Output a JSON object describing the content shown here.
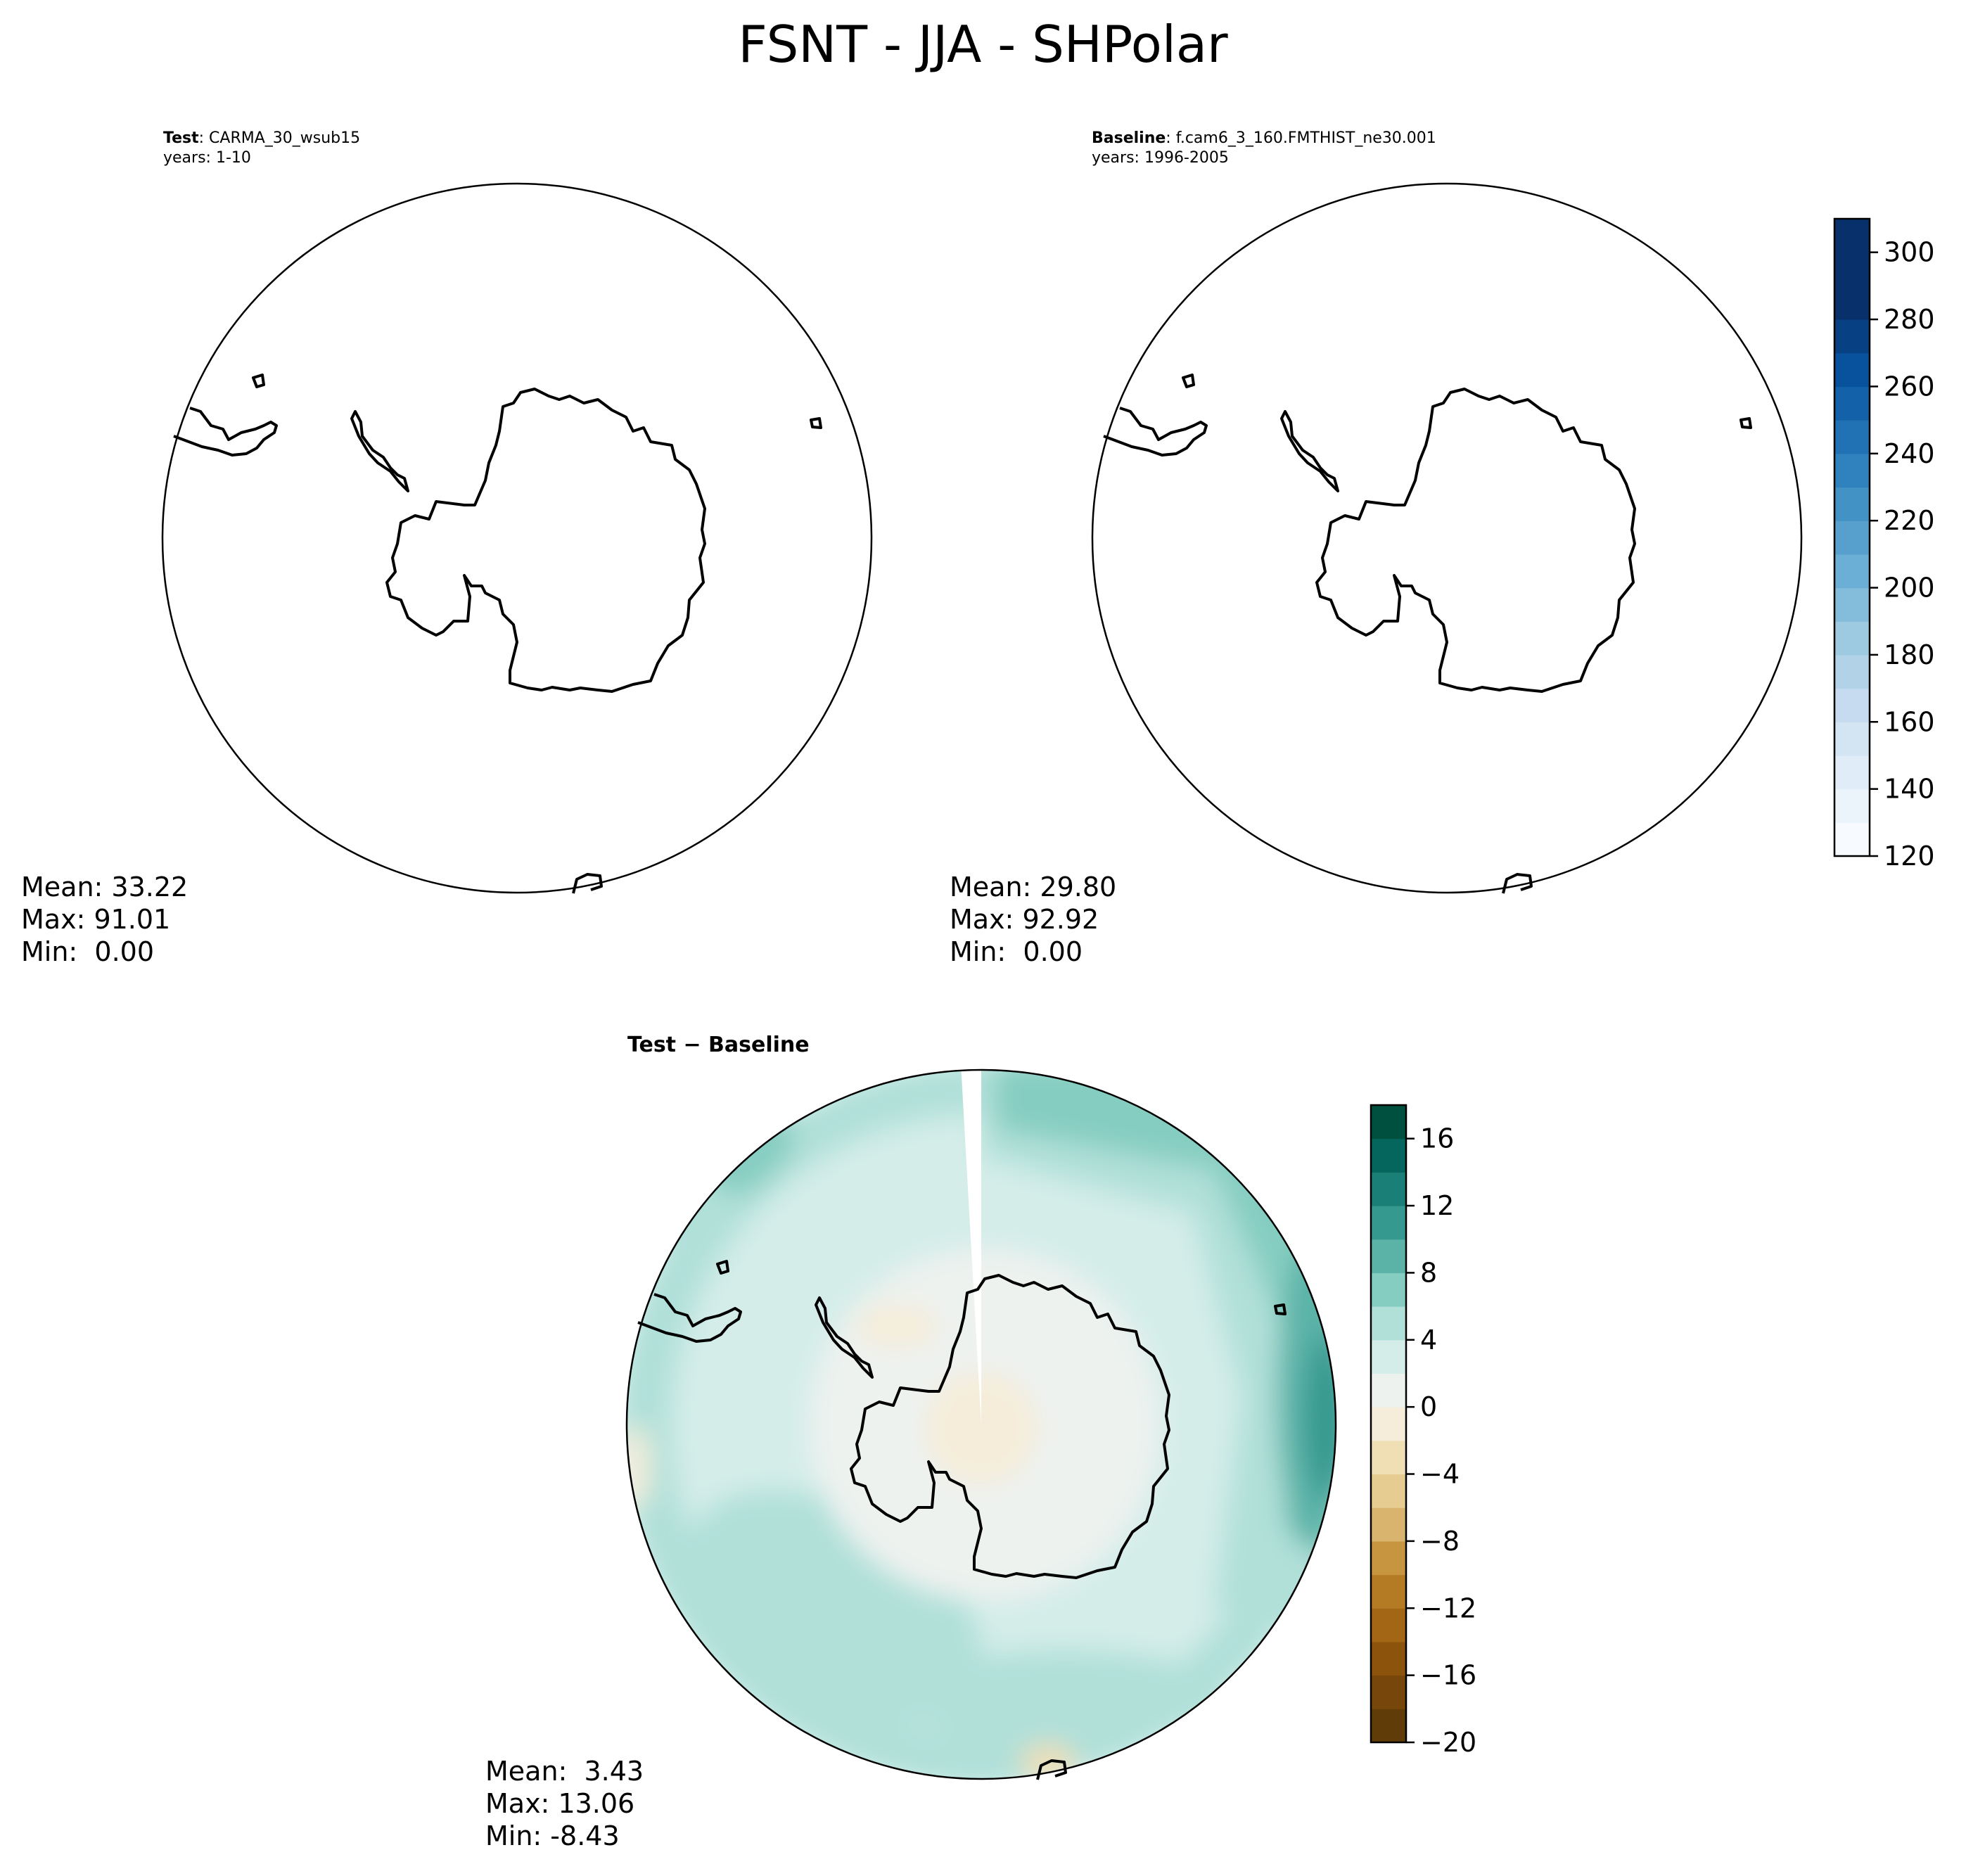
{
  "chart_data": {
    "title": "FSNT - JJA - SHPolar",
    "panels": [
      {
        "type": "contour-map",
        "projection": "south-polar-stereographic",
        "label_bold": "Test",
        "label_rest": ": CARMA_30_wsub15",
        "years": "years: 1-10",
        "stats": {
          "mean": "Mean: 33.22",
          "max": "Max: 91.01",
          "min": "Min:  0.00"
        },
        "field_values": "all below color range (Max 91.01)"
      },
      {
        "type": "contour-map",
        "projection": "south-polar-stereographic",
        "label_bold": "Baseline",
        "label_rest": ": f.cam6_3_160.FMTHIST_ne30.001",
        "years": "years: 1996-2005",
        "stats": {
          "mean": "Mean: 29.80",
          "max": "Max: 92.92",
          "min": "Min:  0.00"
        },
        "colorbar": {
          "cmap": "Blues",
          "range": [
            120,
            310
          ],
          "ticks": [
            "120",
            "140",
            "160",
            "180",
            "200",
            "220",
            "240",
            "260",
            "280",
            "300"
          ],
          "levels": [
            120,
            130,
            140,
            150,
            160,
            170,
            180,
            190,
            200,
            210,
            220,
            230,
            240,
            250,
            260,
            270,
            280,
            290,
            300,
            310
          ],
          "colors": [
            "#f7fbff",
            "#ebf3fb",
            "#e0ecf8",
            "#d3e4f3",
            "#c6dbef",
            "#b2d2e8",
            "#9ecae1",
            "#84bcdb",
            "#6baed6",
            "#57a0ce",
            "#4292c6",
            "#3082be",
            "#2171b5",
            "#1361a9",
            "#08519c",
            "#084084",
            "#08306b",
            "#08306b",
            "#08306b"
          ]
        }
      },
      {
        "type": "contour-map",
        "projection": "south-polar-stereographic",
        "label_bold": "Test − Baseline",
        "stats": {
          "mean": "Mean:  3.43",
          "max": "Max: 13.06",
          "min": "Min: -8.43"
        },
        "colorbar": {
          "cmap": "BrBG",
          "range": [
            -20,
            18
          ],
          "ticks": [
            "−20",
            "−16",
            "−12",
            "−8",
            "−4",
            "0",
            "4",
            "8",
            "12",
            "16"
          ],
          "colors": [
            "#603c09",
            "#76460a",
            "#8c530d",
            "#a26615",
            "#b57a24",
            "#c79540",
            "#d8b46e",
            "#e6cc90",
            "#f0deb4",
            "#f5edd9",
            "#edf2ef",
            "#d4ede9",
            "#b1e0d9",
            "#86cdc1",
            "#5bb3a8",
            "#36998f",
            "#1a7f76",
            "#05665d",
            "#00503f"
          ]
        },
        "field_description": "Positive anomalies (0 to 12) dominate; strongest (8-12) near 90E; near zero over the pole; small negative patches near -4"
      }
    ]
  }
}
